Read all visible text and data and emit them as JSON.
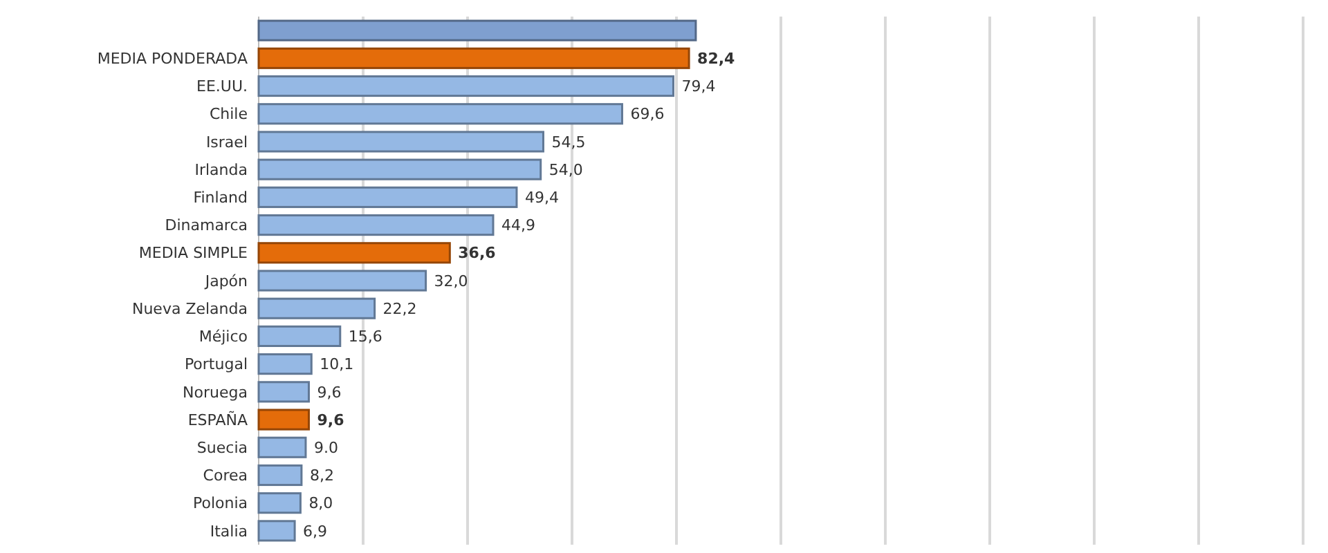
{
  "chart_data": {
    "type": "bar",
    "orientation": "horizontal",
    "categories": [
      null,
      "MEDIA PONDERADA",
      "EE.UU.",
      "Chile",
      "Israel",
      "Irlanda",
      "Finland",
      "Dinamarca",
      "MEDIA SIMPLE",
      "Japón",
      "Nueva Zelanda",
      "Méjico",
      "Portugal",
      "Noruega",
      "ESPAÑA",
      "Suecia",
      "Corea",
      "Polonia",
      "Italia"
    ],
    "values": [
      83.7,
      82.4,
      79.4,
      69.6,
      54.5,
      54.0,
      49.4,
      44.9,
      36.6,
      32.0,
      22.2,
      15.6,
      10.1,
      9.6,
      9.6,
      9.0,
      8.2,
      8.0,
      6.9
    ],
    "colors": [
      "#7f9fcf",
      "#e46c0a",
      "#95b8e4",
      "#95b8e4",
      "#95b8e4",
      "#95b8e4",
      "#95b8e4",
      "#95b8e4",
      "#e46c0a",
      "#95b8e4",
      "#95b8e4",
      "#95b8e4",
      "#95b8e4",
      "#95b8e4",
      "#e46c0a",
      "#95b8e4",
      "#95b8e4",
      "#95b8e4",
      "#95b8e4"
    ],
    "value_labels": [
      null,
      "82,4",
      "79,4",
      "69,6",
      "54,5",
      "54,0",
      "49,4",
      "44,9",
      "36,6",
      "32,0",
      "22,2",
      "15,6",
      "10,1",
      "9,6",
      "9,6",
      "9.0",
      "8,2",
      "8,0",
      "6,9"
    ],
    "xlim": [
      0,
      200
    ],
    "xticks": [
      {
        "value": 20,
        "label": null
      },
      {
        "value": 40,
        "label": null
      },
      {
        "value": 60,
        "label": null
      },
      {
        "value": 80,
        "label": null
      },
      {
        "value": 100,
        "label": null
      },
      {
        "value": 120,
        "label": null
      },
      {
        "value": 140,
        "label": null
      },
      {
        "value": 160,
        "label": null
      },
      {
        "value": 180,
        "label": null
      },
      {
        "value": 200,
        "label": null
      }
    ],
    "grid": "x"
  }
}
